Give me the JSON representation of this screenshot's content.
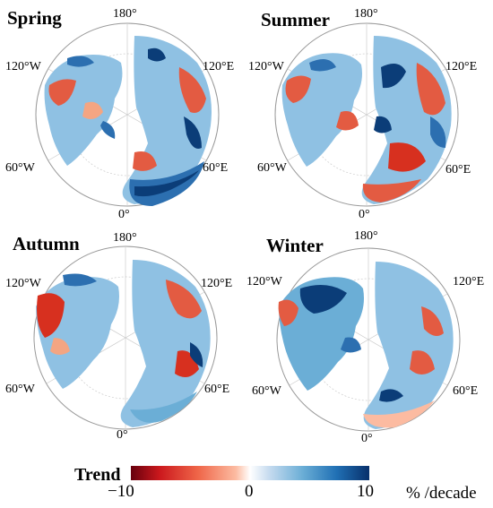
{
  "panels": [
    {
      "season": "Spring",
      "labels": {
        "top": "180°",
        "left": "120°W",
        "right": "120°E",
        "lowleft": "60°W",
        "lowright": "60°E",
        "bottom": "0°"
      }
    },
    {
      "season": "Summer",
      "labels": {
        "top": "180°",
        "left": "120°W",
        "right": "120°E",
        "lowleft": "60°W",
        "lowright": "60°E",
        "bottom": "0°"
      }
    },
    {
      "season": "Autumn",
      "labels": {
        "top": "180°",
        "left": "120°W",
        "right": "120°E",
        "lowleft": "60°W",
        "lowright": "60°E",
        "bottom": "0°"
      }
    },
    {
      "season": "Winter",
      "labels": {
        "top": "180°",
        "left": "120°W",
        "right": "120°E",
        "lowleft": "60°W",
        "lowright": "60°E",
        "bottom": "0°"
      }
    }
  ],
  "colorbar": {
    "title": "Trend",
    "min_label": "−10",
    "mid_label": "0",
    "max_label": "10",
    "unit": "% /decade",
    "min": -10,
    "max": 10,
    "colors": [
      "#67000d",
      "#cb181d",
      "#ef6548",
      "#fcbba1",
      "#ffffff",
      "#c6dbef",
      "#6baed6",
      "#2171b5",
      "#08306b"
    ]
  },
  "colors": {
    "ocean": "#ffffff",
    "grid": "#bdbdbd",
    "land_base": "#8fc1e3",
    "warming": "#e35b42",
    "strong_positive": "#0b3d78"
  }
}
